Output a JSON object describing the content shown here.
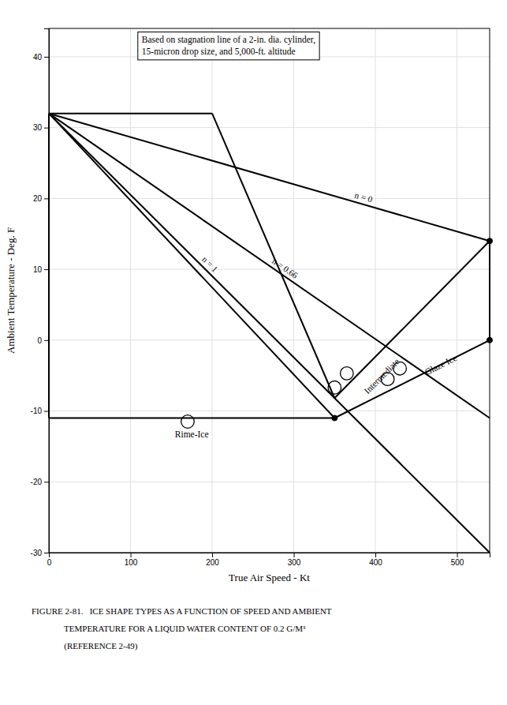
{
  "chart_data": {
    "type": "line",
    "xlabel": "True Air Speed - Kt",
    "ylabel": "Ambient Temperature - Deg. F",
    "xlim": [
      0,
      540
    ],
    "ylim": [
      -30,
      44
    ],
    "xticks": [
      0,
      100,
      200,
      300,
      400,
      500
    ],
    "yticks": [
      -30,
      -20,
      -10,
      0,
      10,
      20,
      30,
      40
    ],
    "grid": true,
    "series": [
      {
        "name": "n = 0",
        "color": "#000000",
        "x": [
          0,
          540
        ],
        "values": [
          32,
          14
        ]
      },
      {
        "name": "n = 0.66",
        "color": "#000000",
        "x": [
          0,
          540
        ],
        "values": [
          32,
          -11
        ]
      },
      {
        "name": "n = 1",
        "color": "#000000",
        "x": [
          0,
          540
        ],
        "values": [
          32,
          -30
        ]
      },
      {
        "color": "#000000",
        "x": [
          0,
          0
        ],
        "values": [
          -11,
          32
        ]
      },
      {
        "color": "#000000",
        "x": [
          0,
          200
        ],
        "values": [
          32,
          32
        ]
      },
      {
        "color": "#000000",
        "x": [
          0,
          350
        ],
        "values": [
          -11,
          -11
        ]
      },
      {
        "color": "#000000",
        "x": [
          350,
          540
        ],
        "values": [
          -11,
          0
        ]
      },
      {
        "color": "#000000",
        "x": [
          540,
          540
        ],
        "values": [
          0,
          14
        ]
      },
      {
        "color": "#000000",
        "x": [
          350,
          540
        ],
        "values": [
          -8.185185185185185,
          14
        ]
      },
      {
        "color": "#000000",
        "x": [
          0,
          350
        ],
        "values": [
          32,
          -11
        ]
      },
      {
        "color": "#000000",
        "x": [
          200,
          350
        ],
        "values": [
          32,
          -8.185185185185185
        ]
      },
      {
        "type": "scatter",
        "marker": "open_circle",
        "color": "#000000",
        "x": [
          170,
          350,
          365,
          415,
          430
        ],
        "values": [
          -11.5,
          -6.685185185185185,
          -4.685185185185185,
          -5.5,
          -4
        ]
      },
      {
        "type": "scatter",
        "marker": "circle",
        "color": "#000000",
        "x": [
          350,
          540,
          540
        ],
        "values": [
          -11,
          0,
          14
        ]
      }
    ],
    "annotations": [
      {
        "text": "Based on stagnation line of a 2-in. dia. cylinder,\n15-micron drop size, and 5,000-ft. altitude",
        "x": 108,
        "y": 43.5
      },
      {
        "text": "Rime-Ice",
        "x": 175,
        "y": -12.8
      },
      {
        "text": "Intermediate",
        "x": 405,
        "y": -4.763157894736842
      },
      {
        "text": "Glaze Ice",
        "x": 480,
        "y": -3.5
      }
    ],
    "caption": [
      "FIGURE 2-81.   ICE SHAPE TYPES AS A FUNCTION OF SPEED AND AMBIENT",
      "               TEMPERATURE FOR A LIQUID WATER CONTENT OF 0.2 G/M³",
      "               (REFERENCE 2-49)"
    ]
  }
}
